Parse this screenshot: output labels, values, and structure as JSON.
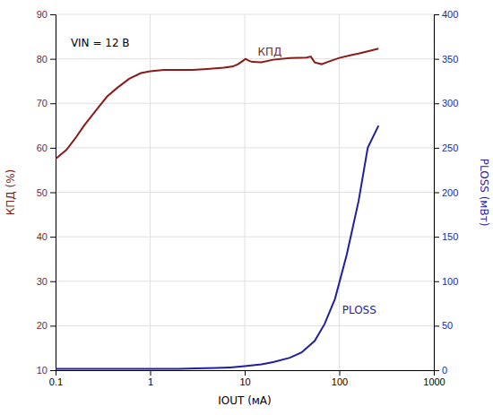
{
  "chart_data": {
    "type": "line",
    "log": "x",
    "grid": true,
    "xlabel": "IOUT (мА)",
    "ylabel": "КПД (%)",
    "y2label": "PLOSS (мВт)",
    "annotations": [
      "VIN = 12 В"
    ],
    "xlim": [
      0.1,
      1000
    ],
    "xticks": [
      0.1,
      1,
      10,
      100,
      1000
    ],
    "ylim": [
      10,
      90
    ],
    "yticks": [
      10,
      20,
      30,
      40,
      50,
      60,
      70,
      80,
      90
    ],
    "y2lim": [
      0,
      400
    ],
    "y2ticks": [
      0,
      50,
      100,
      150,
      200,
      250,
      300,
      350,
      400
    ],
    "series": [
      {
        "name": "КПД",
        "color": "#8B1A1A",
        "x": [
          0.1,
          0.13,
          0.16,
          0.2,
          0.27,
          0.35,
          0.45,
          0.6,
          0.8,
          1.0,
          1.4,
          2.0,
          2.8,
          4.0,
          6.0,
          7.5,
          8.5,
          9.5,
          10.2,
          11.0,
          12.0,
          15.0,
          20.0,
          30.0,
          45.0,
          50.0,
          55.0,
          65.0,
          80.0,
          100.0,
          130.0,
          160.0,
          200.0,
          260.0
        ],
        "values": [
          57.5,
          59.5,
          62.0,
          65.0,
          68.5,
          71.5,
          73.5,
          75.5,
          76.8,
          77.2,
          77.5,
          77.5,
          77.5,
          77.7,
          78.0,
          78.3,
          78.8,
          79.5,
          80.0,
          79.6,
          79.3,
          79.2,
          79.8,
          80.2,
          80.3,
          80.5,
          79.2,
          78.8,
          79.5,
          80.2,
          80.8,
          81.2,
          81.7,
          82.3
        ]
      },
      {
        "name": "PLOSS",
        "color": "#1F1FA0",
        "axis": "y2",
        "x": [
          0.1,
          0.3,
          0.5,
          0.7,
          1.0,
          1.5,
          2.0,
          3.0,
          5.0,
          7.0,
          10.0,
          15.0,
          20.0,
          30.0,
          40.0,
          55.0,
          70.0,
          90.0,
          120.0,
          160.0,
          200.0,
          260.0
        ],
        "values": [
          1.5,
          1.5,
          1.5,
          1.5,
          1.5,
          1.5,
          1.5,
          2.0,
          2.5,
          3.0,
          4.5,
          6.5,
          9.0,
          14.0,
          20.0,
          33.0,
          52.0,
          80.0,
          130.0,
          190.0,
          250.0,
          275.0
        ]
      }
    ]
  }
}
